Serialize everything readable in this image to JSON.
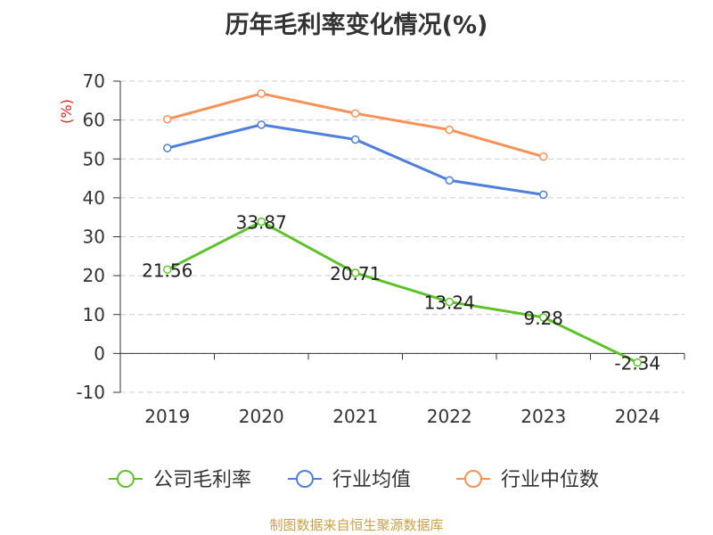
{
  "chart_data": {
    "type": "line",
    "title": "历年毛利率变化情况(%)",
    "ylabel": "(%)",
    "xlabel": "",
    "categories": [
      "2019",
      "2020",
      "2021",
      "2022",
      "2023",
      "2024"
    ],
    "ylim": [
      -10,
      70
    ],
    "yticks": [
      -10,
      0,
      10,
      20,
      30,
      40,
      50,
      60,
      70
    ],
    "grid": "dashed-horizontal",
    "legend_position": "bottom",
    "series": [
      {
        "name": "公司毛利率",
        "color": "#5ec22b",
        "values": [
          21.56,
          33.87,
          20.71,
          13.24,
          9.28,
          -2.34
        ],
        "labels": [
          "21.56",
          "33.87",
          "20.71",
          "13.24",
          "9.28",
          "-2.34"
        ]
      },
      {
        "name": "行业均值",
        "color": "#4f7fdb",
        "values": [
          52.8,
          58.8,
          55.0,
          44.5,
          40.8,
          null
        ]
      },
      {
        "name": "行业中位数",
        "color": "#f79157",
        "values": [
          60.2,
          66.8,
          61.7,
          57.5,
          50.6,
          null
        ]
      }
    ]
  },
  "source": "制图数据来自恒生聚源数据库"
}
